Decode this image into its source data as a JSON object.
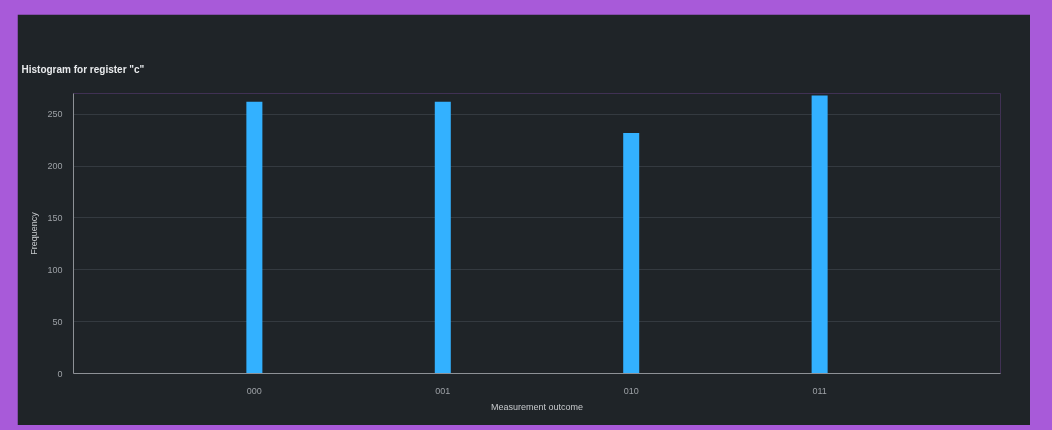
{
  "chart_data": {
    "type": "bar",
    "title": "Histogram for register \"c\"",
    "xlabel": "Measurement outcome",
    "ylabel": "Frequency",
    "categories": [
      "000",
      "001",
      "010",
      "011"
    ],
    "values": [
      262,
      262,
      232,
      268
    ],
    "color": "#33b1ff",
    "ylim": [
      0,
      270
    ],
    "yticks": [
      0,
      50,
      100,
      150,
      200,
      250
    ],
    "grid": "y"
  }
}
